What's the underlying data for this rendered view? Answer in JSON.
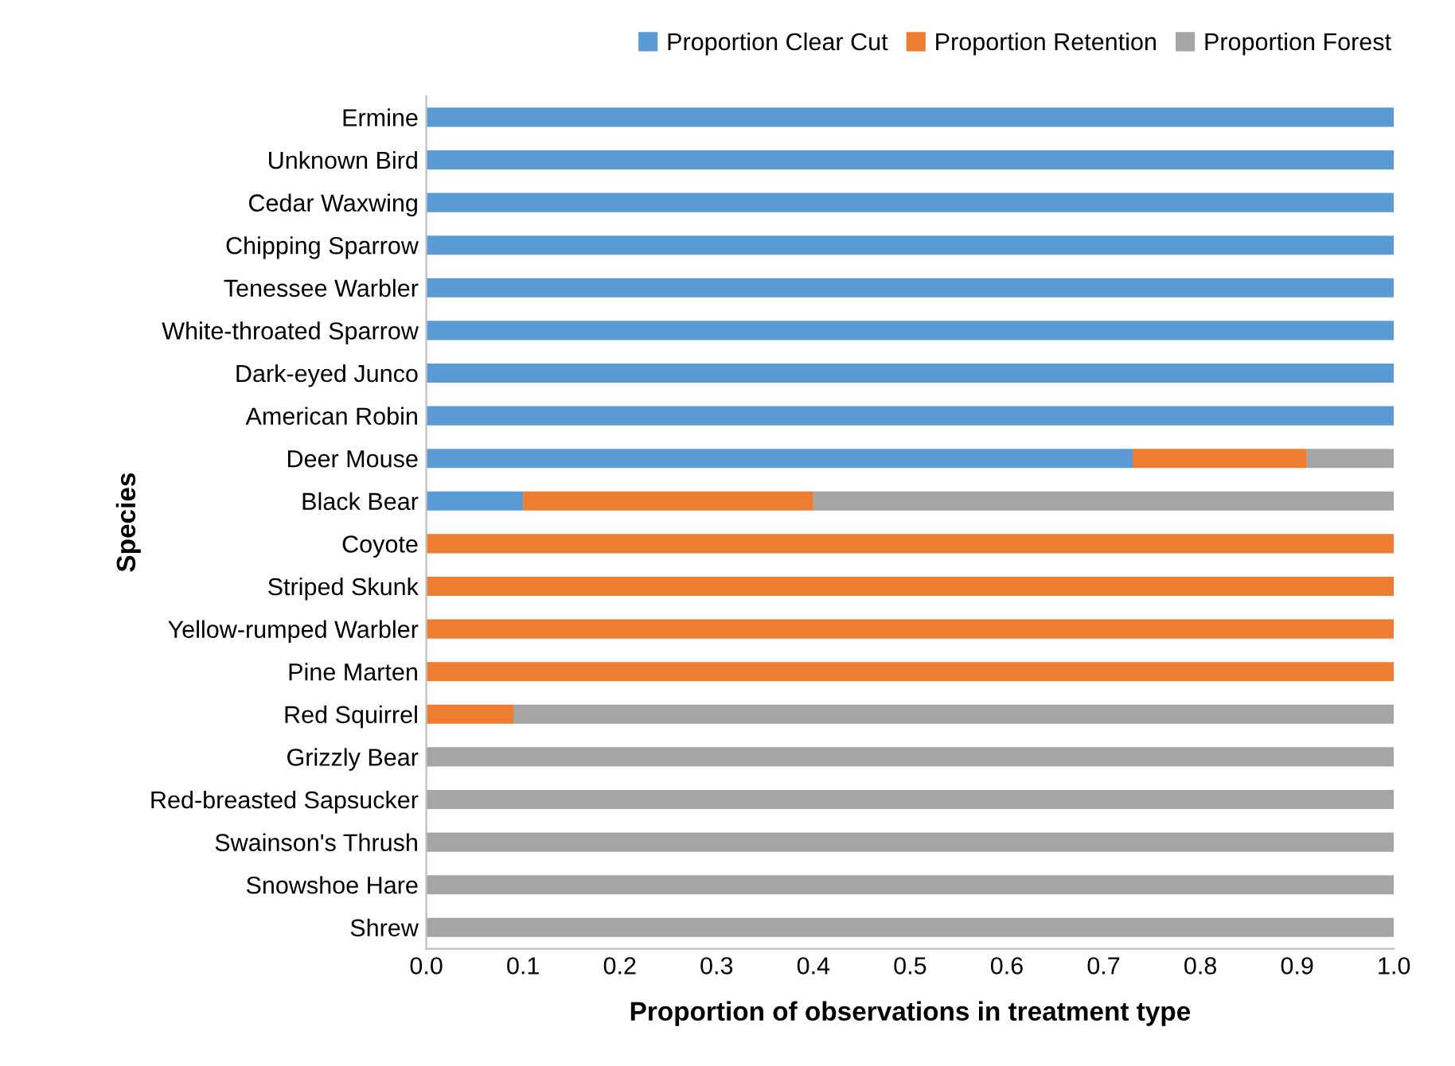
{
  "chart_data": {
    "type": "bar",
    "orientation": "horizontal",
    "stacked": true,
    "xlabel": "Proportion of observations in treatment type",
    "ylabel": "Species",
    "categories": [
      "Ermine",
      "Unknown Bird",
      "Cedar Waxwing",
      "Chipping Sparrow",
      "Tenessee Warbler",
      "White-throated Sparrow",
      "Dark-eyed Junco",
      "American Robin",
      "Deer Mouse",
      "Black Bear",
      "Coyote",
      "Striped Skunk",
      "Yellow-rumped Warbler",
      "Pine Marten",
      "Red Squirrel",
      "Grizzly Bear",
      "Red-breasted Sapsucker",
      "Swainson's Thrush",
      "Snowshoe Hare",
      "Shrew"
    ],
    "series": [
      {
        "name": "Proportion Clear Cut",
        "color": "#5b9bd5",
        "values": [
          1,
          1,
          1,
          1,
          1,
          1,
          1,
          1,
          0.73,
          0.1,
          0,
          0,
          0,
          0,
          0,
          0,
          0,
          0,
          0,
          0
        ]
      },
      {
        "name": "Proportion Retention",
        "color": "#ed7d31",
        "values": [
          0,
          0,
          0,
          0,
          0,
          0,
          0,
          0,
          0.18,
          0.3,
          1,
          1,
          1,
          1,
          0.09,
          0,
          0,
          0,
          0,
          0
        ]
      },
      {
        "name": "Proportion Forest",
        "color": "#a5a5a5",
        "values": [
          0,
          0,
          0,
          0,
          0,
          0,
          0,
          0,
          0.09,
          0.6,
          0,
          0,
          0,
          0,
          0.91,
          1,
          1,
          1,
          1,
          1
        ]
      }
    ],
    "xlim": [
      0,
      1
    ],
    "xticks": [
      {
        "value": 0,
        "label": "0.0"
      },
      0.1,
      0.2,
      0.3,
      0.4,
      0.5,
      0.6,
      0.7,
      0.8,
      0.9,
      {
        "value": 1,
        "label": "1.0"
      }
    ],
    "grid": false,
    "legend": "top right"
  }
}
